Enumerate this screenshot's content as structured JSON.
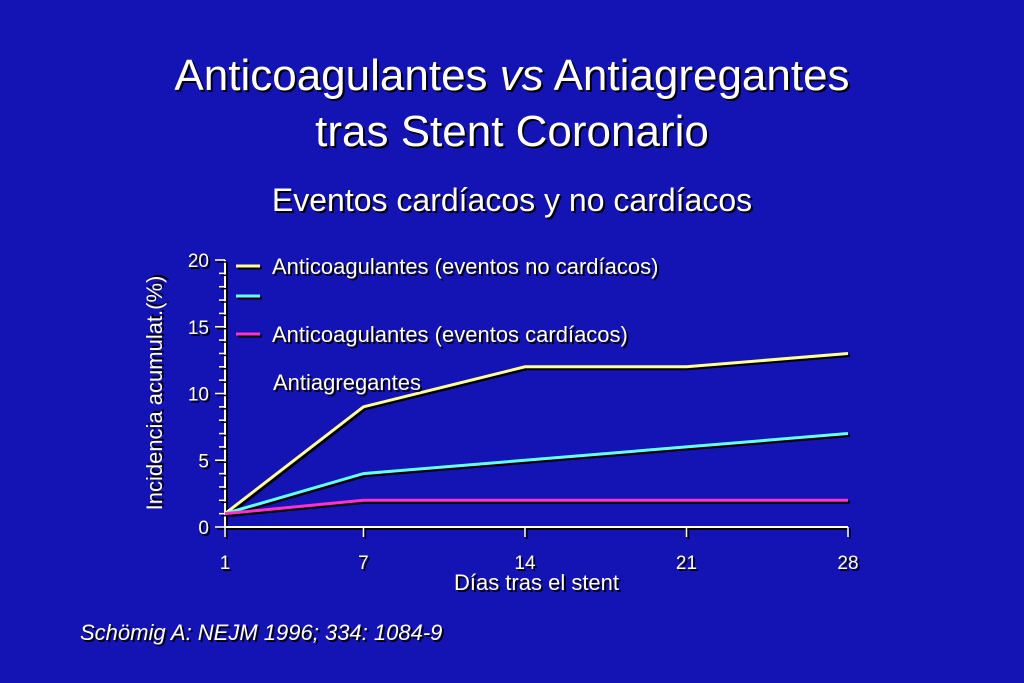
{
  "slide": {
    "title_line1_a": "Anticoagulantes ",
    "title_line1_vs": "vs",
    "title_line1_b": " Antiagregantes",
    "title_line2": "tras Stent Coronario",
    "subtitle": "Eventos cardíacos y no cardíacos",
    "citation": "Schömig A: NEJM 1996; 334: 1084-9"
  },
  "chart_data": {
    "type": "line",
    "title": "",
    "xlabel": "Días tras el stent",
    "ylabel": "Incidencia acumulat.(%)",
    "x": [
      1,
      7,
      14,
      21,
      28
    ],
    "xticks": [
      1,
      7,
      14,
      21,
      28
    ],
    "yticks": [
      0,
      5,
      10,
      15,
      20
    ],
    "xlim": [
      1,
      28
    ],
    "ylim": [
      0,
      20
    ],
    "grid": false,
    "legend_position": "top-left",
    "series": [
      {
        "name": "Anticoagulantes (eventos no cardíacos)",
        "color": "#ffff99",
        "x": [
          1,
          7,
          14,
          21,
          28
        ],
        "values": [
          1,
          9,
          12,
          12,
          13
        ]
      },
      {
        "name": "",
        "color": "#66ffff",
        "x": [
          1,
          7,
          14,
          21,
          28
        ],
        "values": [
          1,
          4,
          5,
          6,
          7
        ]
      },
      {
        "name": "Anticoagulantes (eventos cardíacos)",
        "color": "#ff33cc",
        "x": [
          1,
          7,
          14,
          21,
          28
        ],
        "values": [
          1,
          2,
          2,
          2,
          2
        ]
      }
    ],
    "annotations": [
      {
        "text": "Antiagregantes",
        "x": 8,
        "y": 11
      }
    ]
  }
}
